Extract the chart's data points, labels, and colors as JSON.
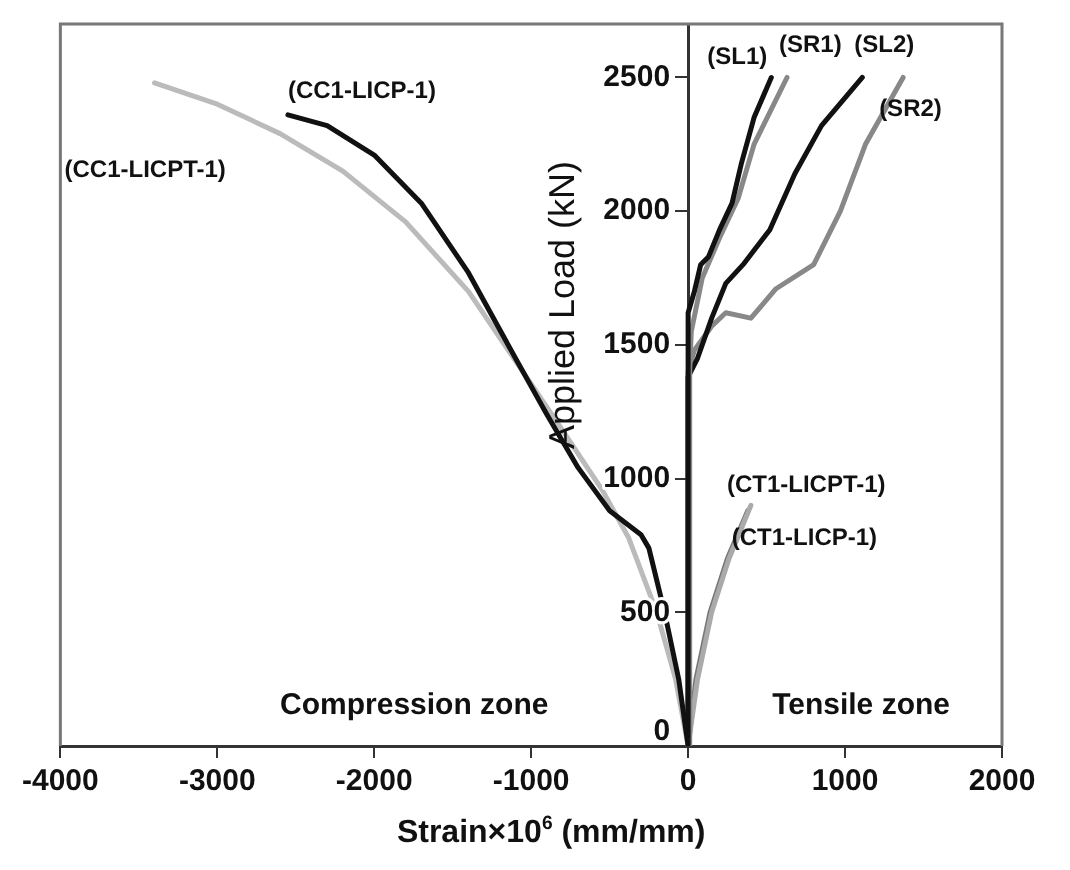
{
  "chart_data": {
    "type": "line",
    "xlabel": "Strain×10$^{6}$ (mm/mm)",
    "ylabel": "Applied Load (kN)",
    "xlim": [
      -4000,
      2000
    ],
    "xticks": [
      -4000,
      -3000,
      -2000,
      -1000,
      0,
      1000,
      2000
    ],
    "ylim": [
      0,
      2700
    ],
    "yticks": [
      0,
      500,
      1000,
      1500,
      2000,
      2500
    ],
    "grid": false,
    "legend": false,
    "marker": "none",
    "line_style": "solid",
    "annotations": [
      "Compression zone",
      "Tensile zone"
    ],
    "series": [
      {
        "name": "(CC1-LICP-1)",
        "color": "#111111",
        "x": [
          0,
          -60,
          -150,
          -250,
          -300,
          -500,
          -700,
          -900,
          -1100,
          -1400,
          -1700,
          -2000,
          -2300,
          -2550
        ],
        "values": [
          0,
          250,
          500,
          740,
          790,
          880,
          1040,
          1240,
          1450,
          1770,
          2030,
          2210,
          2320,
          2360
        ]
      },
      {
        "name": "(CC1-LICPT-1)",
        "color": "#bbbbbb",
        "x": [
          0,
          -80,
          -200,
          -380,
          -550,
          -800,
          -1100,
          -1400,
          -1800,
          -2200,
          -2600,
          -3000,
          -3400
        ],
        "values": [
          0,
          250,
          500,
          780,
          960,
          1180,
          1440,
          1700,
          1960,
          2150,
          2290,
          2400,
          2480
        ]
      },
      {
        "name": "(SL1)",
        "color": "#111111",
        "x": [
          0,
          0,
          40,
          80,
          130,
          200,
          280,
          340,
          420,
          530
        ],
        "values": [
          0,
          1620,
          1700,
          1800,
          1830,
          1930,
          2030,
          2180,
          2350,
          2500
        ]
      },
      {
        "name": "(SR1)",
        "color": "#888888",
        "x": [
          0,
          10,
          20,
          90,
          200,
          320,
          420,
          630
        ],
        "values": [
          0,
          1400,
          1550,
          1750,
          1900,
          2050,
          2250,
          2500
        ]
      },
      {
        "name": "(SL2)",
        "color": "#111111",
        "x": [
          0,
          0,
          60,
          150,
          240,
          350,
          520,
          680,
          850,
          1110
        ],
        "values": [
          0,
          1380,
          1450,
          1600,
          1730,
          1800,
          1930,
          2140,
          2320,
          2500
        ]
      },
      {
        "name": "(SR2)",
        "color": "#888888",
        "x": [
          0,
          0,
          40,
          150,
          240,
          400,
          560,
          800,
          970,
          1130,
          1370
        ],
        "values": [
          0,
          1400,
          1480,
          1570,
          1620,
          1600,
          1710,
          1800,
          2000,
          2250,
          2500
        ]
      },
      {
        "name": "(CT1-LICPT-1)",
        "color": "#aaaaaa",
        "x": [
          0,
          60,
          150,
          260,
          400
        ],
        "values": [
          0,
          250,
          500,
          700,
          900
        ]
      },
      {
        "name": "(CT1-LICP-1)",
        "color": "#777777",
        "x": [
          0,
          50,
          140,
          250,
          380
        ],
        "values": [
          0,
          250,
          500,
          700,
          880
        ]
      }
    ]
  }
}
